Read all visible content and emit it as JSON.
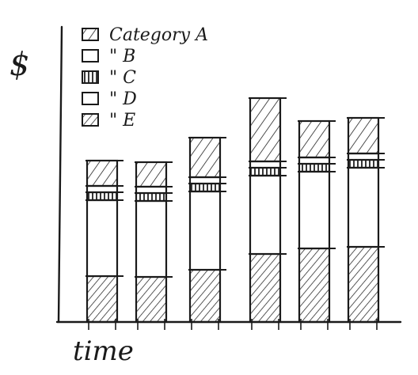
{
  "chart_data": {
    "type": "bar",
    "stacked": true,
    "title": "",
    "xlabel": "time",
    "ylabel": "$",
    "categories": [
      "",
      "",
      "",
      "",
      "",
      ""
    ],
    "series": [
      {
        "name": "E",
        "legend_label": "\" E",
        "pattern": "hatch-fine",
        "values": [
          58,
          57,
          66,
          86,
          93,
          95
        ]
      },
      {
        "name": "D",
        "legend_label": "\" D",
        "pattern": "blank",
        "values": [
          96,
          96,
          99,
          99,
          97,
          100
        ]
      },
      {
        "name": "C",
        "legend_label": "\" C",
        "pattern": "vertical",
        "values": [
          10,
          10,
          10,
          10,
          10,
          10
        ]
      },
      {
        "name": "B",
        "legend_label": "\" B",
        "pattern": "blank",
        "values": [
          8,
          8,
          8,
          8,
          8,
          8
        ]
      },
      {
        "name": "A",
        "legend_label": "Category A",
        "pattern": "hatch-wide",
        "values": [
          32,
          31,
          50,
          80,
          46,
          45
        ]
      }
    ],
    "legend_order": [
      "A",
      "B",
      "C",
      "D",
      "E"
    ],
    "ylim": [
      0,
      330
    ],
    "grid": false,
    "legend_position": "top-left",
    "ticks_shown": false
  }
}
